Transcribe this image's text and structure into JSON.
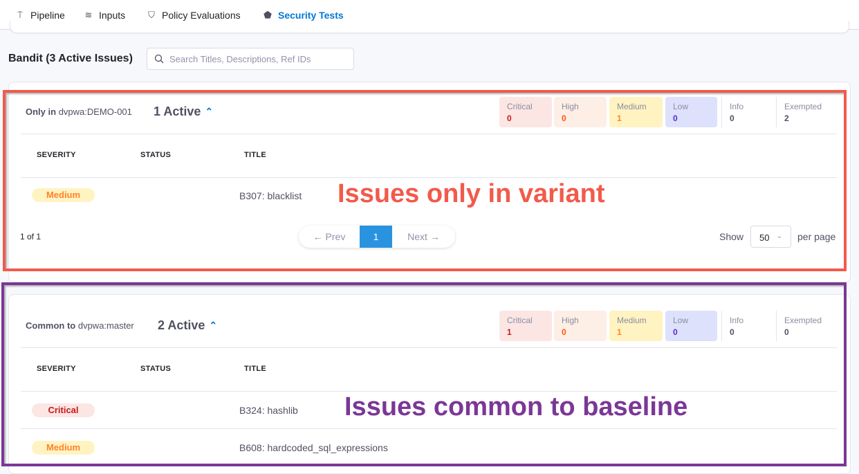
{
  "tabs": [
    {
      "label": "Pipeline",
      "icon": "pipeline-icon"
    },
    {
      "label": "Inputs",
      "icon": "inputs-icon"
    },
    {
      "label": "Policy Evaluations",
      "icon": "shield-check-icon"
    },
    {
      "label": "Security Tests",
      "icon": "security-shield-icon",
      "active": true
    }
  ],
  "scanner_title": "Bandit (3 Active Issues)",
  "search": {
    "placeholder": "Search Titles, Descriptions, Ref IDs",
    "value": ""
  },
  "sections": [
    {
      "prefix": "Only in",
      "target": "dvpwa:DEMO-001",
      "active": "1 Active",
      "counts": [
        {
          "label": "Critical",
          "value": "0"
        },
        {
          "label": "High",
          "value": "0"
        },
        {
          "label": "Medium",
          "value": "1"
        },
        {
          "label": "Low",
          "value": "0"
        },
        {
          "label": "Info",
          "value": "0"
        },
        {
          "label": "Exempted",
          "value": "2"
        }
      ],
      "columns": [
        "SEVERITY",
        "STATUS",
        "TITLE"
      ],
      "rows": [
        {
          "severity": "Medium",
          "status": "",
          "title": "B307: blacklist"
        }
      ],
      "pagination": {
        "summary": "1 of 1",
        "prev": "← Prev",
        "page": "1",
        "next": "Next →",
        "show": "Show",
        "per_page_value": "50",
        "per_page": "per page"
      },
      "annotation": "Issues only in variant"
    },
    {
      "prefix": "Common to",
      "target": "dvpwa:master",
      "active": "2 Active",
      "counts": [
        {
          "label": "Critical",
          "value": "1"
        },
        {
          "label": "High",
          "value": "0"
        },
        {
          "label": "Medium",
          "value": "1"
        },
        {
          "label": "Low",
          "value": "0"
        },
        {
          "label": "Info",
          "value": "0"
        },
        {
          "label": "Exempted",
          "value": "0"
        }
      ],
      "columns": [
        "SEVERITY",
        "STATUS",
        "TITLE"
      ],
      "rows": [
        {
          "severity": "Critical",
          "status": "",
          "title": "B324: hashlib"
        },
        {
          "severity": "Medium",
          "status": "",
          "title": "B608: hardcoded_sql_expressions"
        }
      ],
      "annotation": "Issues common to baseline"
    }
  ],
  "colors": {
    "accent": "#0278d5",
    "annotation_variant": "#f25a4b",
    "annotation_baseline": "#7b3796",
    "critical": "#c41a1a",
    "high": "#ff5310",
    "medium": "#ff832b",
    "low": "#5a2ecc"
  }
}
